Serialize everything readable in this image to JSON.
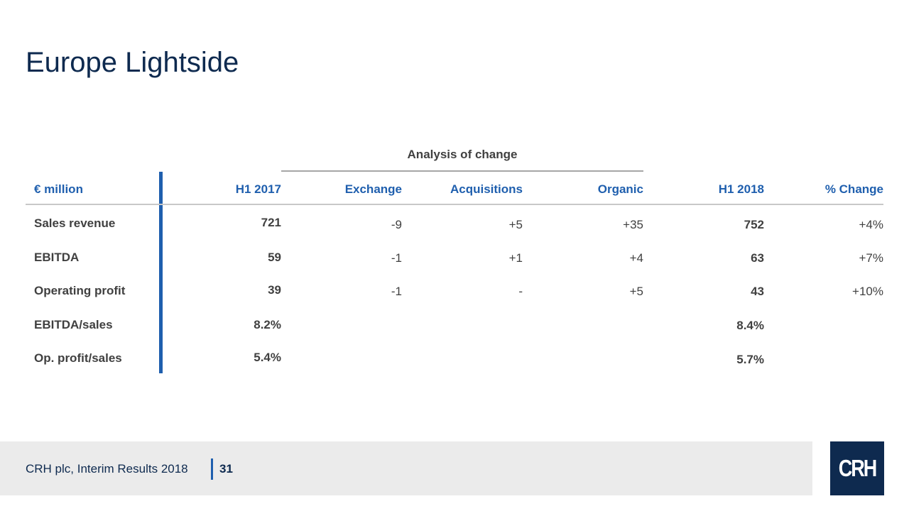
{
  "slide": {
    "title": "Europe Lightside"
  },
  "table": {
    "group_header": "Analysis of change",
    "headers": [
      "€ million",
      "H1 2017",
      "Exchange",
      "Acquisitions",
      "Organic",
      "H1 2018",
      "% Change"
    ],
    "rows": [
      {
        "label": "Sales revenue",
        "h1_2017": "721",
        "exchange": "-9",
        "acquisitions": "+5",
        "organic": "+35",
        "h1_2018": "752",
        "pct_change": "+4%"
      },
      {
        "label": "EBITDA",
        "h1_2017": "59",
        "exchange": "-1",
        "acquisitions": "+1",
        "organic": "+4",
        "h1_2018": "63",
        "pct_change": "+7%"
      },
      {
        "label": "Operating profit",
        "h1_2017": "39",
        "exchange": "-1",
        "acquisitions": "-",
        "organic": "+5",
        "h1_2018": "43",
        "pct_change": "+10%"
      },
      {
        "label": "EBITDA/sales",
        "h1_2017": "8.2%",
        "exchange": "",
        "acquisitions": "",
        "organic": "",
        "h1_2018": "8.4%",
        "pct_change": ""
      },
      {
        "label": "Op. profit/sales",
        "h1_2017": "5.4%",
        "exchange": "",
        "acquisitions": "",
        "organic": "",
        "h1_2018": "5.7%",
        "pct_change": ""
      }
    ]
  },
  "footer": {
    "text": "CRH plc, Interim Results 2018",
    "page_number": "31",
    "logo_text": "CRH"
  },
  "colors": {
    "title": "#0e2a4f",
    "header_blue": "#1f5fae",
    "body_text": "#404040",
    "footer_band": "#ebebeb",
    "logo_bg": "#0e2a4f"
  }
}
